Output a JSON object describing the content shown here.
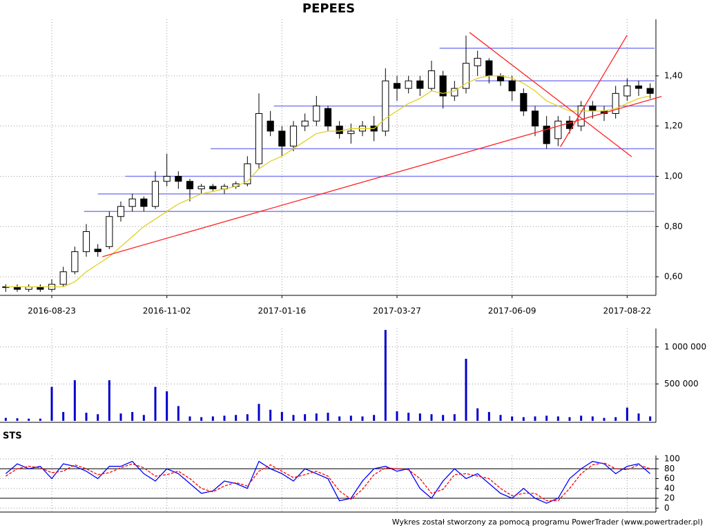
{
  "chart_data": [
    {
      "type": "candlestick",
      "title": "PEPEES",
      "categories": [
        null,
        null,
        null,
        null,
        "2016-08-23",
        null,
        null,
        null,
        null,
        null,
        null,
        null,
        null,
        null,
        "2016-11-02",
        null,
        null,
        null,
        null,
        null,
        null,
        null,
        null,
        null,
        "2017-01-16",
        null,
        null,
        null,
        null,
        null,
        null,
        null,
        null,
        null,
        "2017-03-27",
        null,
        null,
        null,
        null,
        null,
        null,
        null,
        null,
        null,
        "2017-06-09",
        null,
        null,
        null,
        null,
        null,
        null,
        null,
        null,
        null,
        "2017-08-22",
        null,
        null
      ],
      "open": [
        0.56,
        0.56,
        0.55,
        0.56,
        0.55,
        0.57,
        0.62,
        0.7,
        0.71,
        0.72,
        0.84,
        0.88,
        0.91,
        0.88,
        0.98,
        1.0,
        0.98,
        0.95,
        0.96,
        0.95,
        0.96,
        0.97,
        1.05,
        1.22,
        1.18,
        1.12,
        1.2,
        1.22,
        1.27,
        1.2,
        1.17,
        1.18,
        1.2,
        1.18,
        1.37,
        1.35,
        1.38,
        1.35,
        1.4,
        1.32,
        1.35,
        1.44,
        1.46,
        1.4,
        1.38,
        1.33,
        1.26,
        1.2,
        1.15,
        1.22,
        1.2,
        1.28,
        1.26,
        1.25,
        1.32,
        1.36,
        1.35
      ],
      "high": [
        0.57,
        0.57,
        0.57,
        0.57,
        0.59,
        0.64,
        0.72,
        0.81,
        0.73,
        0.86,
        0.9,
        0.93,
        0.92,
        1.02,
        1.09,
        1.02,
        0.99,
        0.97,
        0.97,
        0.97,
        0.98,
        1.08,
        1.33,
        1.26,
        1.2,
        1.22,
        1.25,
        1.32,
        1.28,
        1.22,
        1.21,
        1.22,
        1.24,
        1.43,
        1.4,
        1.4,
        1.4,
        1.46,
        1.42,
        1.38,
        1.56,
        1.5,
        1.47,
        1.41,
        1.4,
        1.35,
        1.28,
        1.24,
        1.24,
        1.24,
        1.3,
        1.3,
        1.28,
        1.36,
        1.39,
        1.38,
        1.37
      ],
      "low": [
        0.54,
        0.54,
        0.54,
        0.54,
        0.54,
        0.56,
        0.61,
        0.68,
        0.68,
        0.71,
        0.82,
        0.86,
        0.86,
        0.87,
        0.96,
        0.95,
        0.9,
        0.93,
        0.94,
        0.93,
        0.95,
        0.96,
        1.03,
        1.16,
        1.08,
        1.1,
        1.18,
        1.2,
        1.18,
        1.15,
        1.13,
        1.16,
        1.14,
        1.16,
        1.3,
        1.33,
        1.32,
        1.34,
        1.27,
        1.3,
        1.33,
        1.4,
        1.37,
        1.36,
        1.3,
        1.24,
        1.16,
        1.11,
        1.12,
        1.17,
        1.18,
        1.23,
        1.22,
        1.23,
        1.3,
        1.32,
        1.31
      ],
      "close": [
        0.56,
        0.55,
        0.56,
        0.55,
        0.57,
        0.62,
        0.7,
        0.78,
        0.7,
        0.84,
        0.88,
        0.91,
        0.88,
        0.98,
        1.0,
        0.98,
        0.95,
        0.96,
        0.95,
        0.96,
        0.97,
        1.05,
        1.25,
        1.18,
        1.12,
        1.2,
        1.22,
        1.28,
        1.2,
        1.17,
        1.18,
        1.2,
        1.18,
        1.38,
        1.35,
        1.38,
        1.35,
        1.42,
        1.32,
        1.35,
        1.45,
        1.47,
        1.4,
        1.38,
        1.34,
        1.26,
        1.2,
        1.13,
        1.22,
        1.19,
        1.28,
        1.26,
        1.25,
        1.33,
        1.36,
        1.35,
        1.33
      ],
      "moving_average": {
        "color": "#e0d020",
        "values": [
          0.56,
          0.56,
          0.56,
          0.56,
          0.56,
          0.56,
          0.58,
          0.62,
          0.65,
          0.68,
          0.72,
          0.76,
          0.8,
          0.83,
          0.86,
          0.89,
          0.91,
          0.93,
          0.94,
          0.95,
          0.96,
          0.98,
          1.03,
          1.06,
          1.08,
          1.11,
          1.14,
          1.17,
          1.18,
          1.18,
          1.19,
          1.19,
          1.19,
          1.23,
          1.26,
          1.29,
          1.31,
          1.34,
          1.33,
          1.34,
          1.37,
          1.39,
          1.4,
          1.4,
          1.39,
          1.37,
          1.34,
          1.3,
          1.28,
          1.26,
          1.26,
          1.26,
          1.26,
          1.27,
          1.29,
          1.31,
          1.32
        ]
      },
      "ylim": [
        0.526,
        1.625
      ],
      "yticks": [
        {
          "value": 0.6,
          "label": "0,60"
        },
        {
          "value": 0.8,
          "label": "0,80"
        },
        {
          "value": 1.0,
          "label": "1,00"
        },
        {
          "value": 1.2,
          "label": "1,20"
        },
        {
          "value": 1.4,
          "label": "1,40"
        }
      ],
      "grid": true,
      "level_color": "#8080f0",
      "levels": [
        {
          "value": 1.51,
          "x_start": 37.7
        },
        {
          "value": 1.38,
          "x_start": 40.8
        },
        {
          "value": 1.28,
          "x_start": 23.3
        },
        {
          "value": 1.11,
          "x_start": 17.8
        },
        {
          "value": 1.0,
          "x_start": 10.4
        },
        {
          "value": 0.93,
          "x_start": 8.0
        },
        {
          "value": 0.86,
          "x_start": 6.8
        }
      ],
      "trend_color": "#ff2020",
      "trend_lines": [
        {
          "x": [
            8.4,
            57.0
          ],
          "y": [
            0.68,
            1.318
          ]
        },
        {
          "x": [
            40.3,
            54.4
          ],
          "y": [
            1.573,
            1.078
          ]
        },
        {
          "x": [
            48.2,
            54.0
          ],
          "y": [
            1.117,
            1.562
          ]
        }
      ]
    },
    {
      "type": "bar",
      "color": "#0000cc",
      "values": [
        40000,
        35000,
        30000,
        30000,
        460000,
        120000,
        550000,
        110000,
        90000,
        550000,
        100000,
        120000,
        80000,
        460000,
        400000,
        200000,
        60000,
        50000,
        60000,
        70000,
        80000,
        90000,
        230000,
        150000,
        120000,
        80000,
        90000,
        100000,
        110000,
        60000,
        70000,
        60000,
        80000,
        1230000,
        130000,
        110000,
        100000,
        90000,
        80000,
        90000,
        840000,
        170000,
        120000,
        80000,
        60000,
        50000,
        60000,
        70000,
        60000,
        50000,
        70000,
        60000,
        40000,
        50000,
        180000,
        100000,
        60000
      ],
      "ylim": [
        -20000,
        1250000
      ],
      "yticks": [
        {
          "value": 500000,
          "label": "500 000"
        },
        {
          "value": 1000000,
          "label": "1 000 000"
        }
      ],
      "grid": true
    },
    {
      "type": "line",
      "title": "STS",
      "series": [
        {
          "color": "#0000ff",
          "dashed": false,
          "values": [
            70,
            90,
            80,
            85,
            60,
            90,
            85,
            75,
            60,
            85,
            85,
            95,
            70,
            55,
            80,
            70,
            50,
            30,
            35,
            55,
            50,
            40,
            95,
            80,
            70,
            55,
            80,
            70,
            60,
            15,
            20,
            55,
            80,
            85,
            75,
            80,
            40,
            20,
            55,
            80,
            60,
            70,
            50,
            30,
            20,
            40,
            20,
            10,
            20,
            60,
            80,
            95,
            90,
            70,
            85,
            90,
            70
          ]
        },
        {
          "color": "#ff0000",
          "dashed": true,
          "values": [
            65,
            80,
            85,
            82,
            72,
            75,
            88,
            80,
            68,
            72,
            82,
            90,
            82,
            65,
            68,
            75,
            60,
            40,
            33,
            45,
            52,
            45,
            75,
            88,
            75,
            62,
            68,
            75,
            65,
            35,
            18,
            38,
            68,
            82,
            80,
            78,
            60,
            30,
            38,
            68,
            70,
            65,
            60,
            40,
            25,
            30,
            30,
            15,
            15,
            40,
            70,
            88,
            92,
            80,
            78,
            88,
            80
          ]
        }
      ],
      "reference_lines": [
        80,
        20
      ],
      "ylim": [
        -8,
        107
      ],
      "yticks": [
        0,
        20,
        40,
        60,
        80,
        100
      ],
      "grid": true
    }
  ],
  "footer": "Wykres został stworzony za pomocą programu PowerTrader (www.powertrader.pl)"
}
